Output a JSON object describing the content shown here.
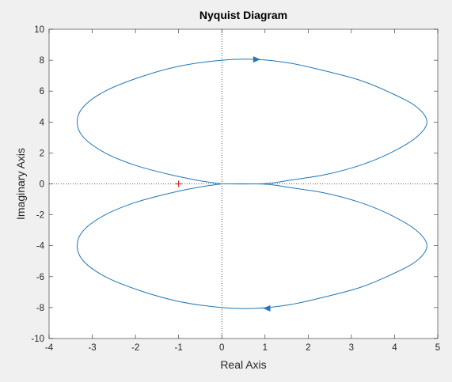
{
  "chart_data": {
    "type": "line",
    "title": "Nyquist Diagram",
    "xlabel": "Real Axis",
    "ylabel": "Imaginary Axis",
    "xlim": [
      -4,
      5
    ],
    "ylim": [
      -10,
      10
    ],
    "xticks": [
      -4,
      -3,
      -2,
      -1,
      0,
      1,
      2,
      3,
      4,
      5
    ],
    "yticks": [
      -10,
      -8,
      -6,
      -4,
      -2,
      0,
      2,
      4,
      6,
      8,
      10
    ],
    "grid": false,
    "reference_lines": [
      {
        "orientation": "vertical",
        "value": 0,
        "style": "dotted"
      },
      {
        "orientation": "horizontal",
        "value": 0,
        "style": "dotted"
      }
    ],
    "critical_point": {
      "x": -1,
      "y": 0,
      "marker": "+",
      "color": "#d62728"
    },
    "series_color": "#1f77b4",
    "series": [
      {
        "x": [
          0,
          -0.5,
          -1.2,
          -2.0,
          -2.7,
          -3.2,
          -3.35,
          -3.2,
          -2.7,
          -1.9,
          -1.0,
          0,
          0.8,
          1.6,
          2.4,
          3.2,
          3.9,
          4.5,
          4.75,
          4.5,
          3.9,
          3.2,
          2.4,
          1.6,
          1.0,
          0
        ],
        "y": [
          0,
          0.2,
          0.6,
          1.2,
          2.0,
          3.0,
          4.0,
          5.0,
          6.0,
          6.9,
          7.6,
          8.0,
          8.05,
          7.8,
          7.3,
          6.7,
          5.9,
          5.0,
          4.0,
          3.0,
          2.0,
          1.2,
          0.6,
          0.25,
          0.02,
          0
        ]
      },
      {
        "x": [
          0,
          -0.5,
          -1.2,
          -2.0,
          -2.7,
          -3.2,
          -3.35,
          -3.2,
          -2.7,
          -1.9,
          -1.0,
          0,
          0.8,
          1.6,
          2.4,
          3.2,
          3.9,
          4.5,
          4.75,
          4.5,
          3.9,
          3.2,
          2.4,
          1.6,
          1.0,
          0
        ],
        "y": [
          0,
          -0.2,
          -0.6,
          -1.2,
          -2.0,
          -3.0,
          -4.0,
          -5.0,
          -6.0,
          -6.9,
          -7.6,
          -8.0,
          -8.05,
          -7.8,
          -7.3,
          -6.7,
          -5.9,
          -5.0,
          -4.0,
          -3.0,
          -2.0,
          -1.2,
          -0.6,
          -0.25,
          -0.02,
          0
        ]
      }
    ],
    "direction_arrows": [
      {
        "x": 0.8,
        "y": 8.05,
        "direction": "right"
      },
      {
        "x": 1.05,
        "y": -8.05,
        "direction": "left"
      }
    ]
  }
}
